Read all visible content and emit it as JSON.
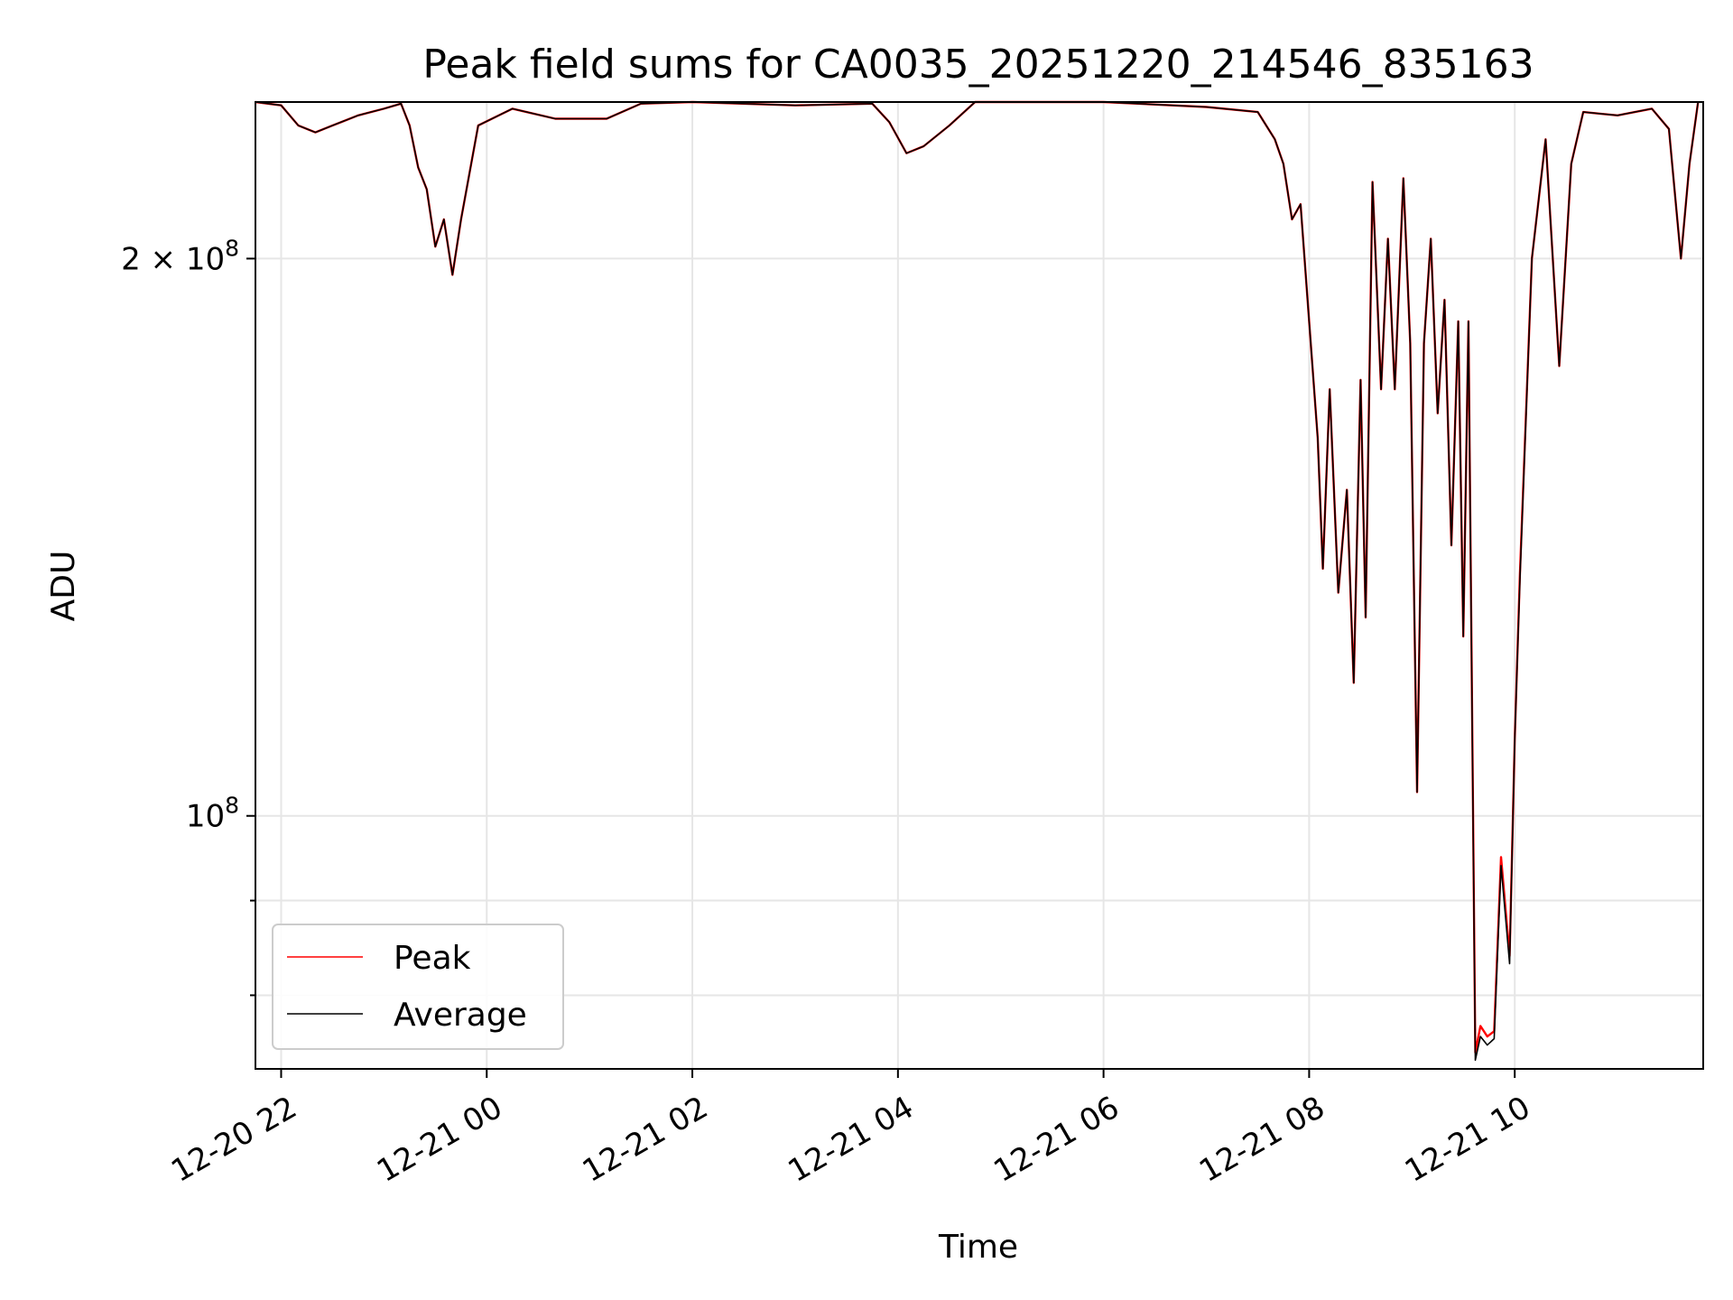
{
  "chart_data": {
    "type": "line",
    "title": "Peak field sums for CA0035_20251220_214546_835163",
    "xlabel": "Time",
    "ylabel": "ADU",
    "yscale": "log",
    "x_ticks": [
      "12-20 22",
      "12-21 00",
      "12-21 02",
      "12-21 04",
      "12-21 06",
      "12-21 08",
      "12-21 10"
    ],
    "y_ticks": [
      {
        "value": 200000000,
        "label": "2 × 10^8",
        "major": true
      },
      {
        "value": 100000000,
        "label": "10^8",
        "major": true
      },
      {
        "value": 90000000,
        "label": "",
        "major": false
      },
      {
        "value": 80000000,
        "label": "",
        "major": false
      }
    ],
    "xlim": [
      "2025-12-20 21:45",
      "2025-12-21 11:50"
    ],
    "ylim": [
      73000000,
      243000000
    ],
    "grid": true,
    "legend_position": "lower left",
    "series": [
      {
        "name": "Peak",
        "color": "#ff0000",
        "points": [
          [
            "2025-12-20 21:45",
            243000000
          ],
          [
            "2025-12-20 22:00",
            242000000
          ],
          [
            "2025-12-20 22:10",
            236000000
          ],
          [
            "2025-12-20 22:20",
            234000000
          ],
          [
            "2025-12-20 22:30",
            236000000
          ],
          [
            "2025-12-20 22:45",
            239000000
          ],
          [
            "2025-12-20 23:00",
            241000000
          ],
          [
            "2025-12-20 23:10",
            242500000
          ],
          [
            "2025-12-20 23:15",
            236000000
          ],
          [
            "2025-12-20 23:20",
            224000000
          ],
          [
            "2025-12-20 23:25",
            218000000
          ],
          [
            "2025-12-20 23:30",
            203000000
          ],
          [
            "2025-12-20 23:35",
            210000000
          ],
          [
            "2025-12-20 23:40",
            196000000
          ],
          [
            "2025-12-20 23:45",
            210000000
          ],
          [
            "2025-12-20 23:55",
            236000000
          ],
          [
            "2025-12-21 00:15",
            241000000
          ],
          [
            "2025-12-21 00:40",
            238000000
          ],
          [
            "2025-12-21 01:10",
            238000000
          ],
          [
            "2025-12-21 01:30",
            242500000
          ],
          [
            "2025-12-21 02:00",
            243000000
          ],
          [
            "2025-12-21 03:00",
            242000000
          ],
          [
            "2025-12-21 03:45",
            242500000
          ],
          [
            "2025-12-21 03:55",
            237000000
          ],
          [
            "2025-12-21 04:05",
            228000000
          ],
          [
            "2025-12-21 04:15",
            230000000
          ],
          [
            "2025-12-21 04:30",
            236000000
          ],
          [
            "2025-12-21 04:45",
            243000000
          ],
          [
            "2025-12-21 06:00",
            243000000
          ],
          [
            "2025-12-21 07:00",
            241500000
          ],
          [
            "2025-12-21 07:30",
            240000000
          ],
          [
            "2025-12-21 07:40",
            232000000
          ],
          [
            "2025-12-21 07:45",
            225000000
          ],
          [
            "2025-12-21 07:50",
            210000000
          ],
          [
            "2025-12-21 07:55",
            214000000
          ],
          [
            "2025-12-21 08:00",
            185000000
          ],
          [
            "2025-12-21 08:05",
            160000000
          ],
          [
            "2025-12-21 08:08",
            136000000
          ],
          [
            "2025-12-21 08:12",
            170000000
          ],
          [
            "2025-12-21 08:17",
            132000000
          ],
          [
            "2025-12-21 08:22",
            150000000
          ],
          [
            "2025-12-21 08:26",
            118000000
          ],
          [
            "2025-12-21 08:30",
            172000000
          ],
          [
            "2025-12-21 08:33",
            128000000
          ],
          [
            "2025-12-21 08:37",
            220000000
          ],
          [
            "2025-12-21 08:42",
            170000000
          ],
          [
            "2025-12-21 08:46",
            205000000
          ],
          [
            "2025-12-21 08:50",
            170000000
          ],
          [
            "2025-12-21 08:55",
            221000000
          ],
          [
            "2025-12-21 08:59",
            180000000
          ],
          [
            "2025-12-21 09:03",
            103000000
          ],
          [
            "2025-12-21 09:07",
            180000000
          ],
          [
            "2025-12-21 09:11",
            205000000
          ],
          [
            "2025-12-21 09:15",
            165000000
          ],
          [
            "2025-12-21 09:19",
            190000000
          ],
          [
            "2025-12-21 09:23",
            140000000
          ],
          [
            "2025-12-21 09:27",
            185000000
          ],
          [
            "2025-12-21 09:30",
            125000000
          ],
          [
            "2025-12-21 09:33",
            185000000
          ],
          [
            "2025-12-21 09:37",
            74500000
          ],
          [
            "2025-12-21 09:40",
            77000000
          ],
          [
            "2025-12-21 09:44",
            76000000
          ],
          [
            "2025-12-21 09:48",
            76500000
          ],
          [
            "2025-12-21 09:52",
            95000000
          ],
          [
            "2025-12-21 09:57",
            84000000
          ],
          [
            "2025-12-21 10:00",
            110000000
          ],
          [
            "2025-12-21 10:03",
            135000000
          ],
          [
            "2025-12-21 10:10",
            200000000
          ],
          [
            "2025-12-21 10:18",
            232000000
          ],
          [
            "2025-12-21 10:26",
            175000000
          ],
          [
            "2025-12-21 10:33",
            225000000
          ],
          [
            "2025-12-21 10:40",
            240000000
          ],
          [
            "2025-12-21 11:00",
            239000000
          ],
          [
            "2025-12-21 11:20",
            241000000
          ],
          [
            "2025-12-21 11:30",
            235000000
          ],
          [
            "2025-12-21 11:37",
            200000000
          ],
          [
            "2025-12-21 11:42",
            225000000
          ],
          [
            "2025-12-21 11:47",
            243000000
          ]
        ]
      },
      {
        "name": "Average",
        "color": "#000000",
        "points": [
          [
            "2025-12-20 21:45",
            243000000
          ],
          [
            "2025-12-20 22:00",
            242000000
          ],
          [
            "2025-12-20 22:10",
            236000000
          ],
          [
            "2025-12-20 22:20",
            234000000
          ],
          [
            "2025-12-20 22:30",
            236000000
          ],
          [
            "2025-12-20 22:45",
            239000000
          ],
          [
            "2025-12-20 23:00",
            241000000
          ],
          [
            "2025-12-20 23:10",
            242500000
          ],
          [
            "2025-12-20 23:15",
            236000000
          ],
          [
            "2025-12-20 23:20",
            224000000
          ],
          [
            "2025-12-20 23:25",
            218000000
          ],
          [
            "2025-12-20 23:30",
            203000000
          ],
          [
            "2025-12-20 23:35",
            210000000
          ],
          [
            "2025-12-20 23:40",
            196000000
          ],
          [
            "2025-12-20 23:45",
            210000000
          ],
          [
            "2025-12-20 23:55",
            236000000
          ],
          [
            "2025-12-21 00:15",
            241000000
          ],
          [
            "2025-12-21 00:40",
            238000000
          ],
          [
            "2025-12-21 01:10",
            238000000
          ],
          [
            "2025-12-21 01:30",
            242500000
          ],
          [
            "2025-12-21 02:00",
            243000000
          ],
          [
            "2025-12-21 03:00",
            242000000
          ],
          [
            "2025-12-21 03:45",
            242500000
          ],
          [
            "2025-12-21 03:55",
            237000000
          ],
          [
            "2025-12-21 04:05",
            228000000
          ],
          [
            "2025-12-21 04:15",
            230000000
          ],
          [
            "2025-12-21 04:30",
            236000000
          ],
          [
            "2025-12-21 04:45",
            243000000
          ],
          [
            "2025-12-21 06:00",
            243000000
          ],
          [
            "2025-12-21 07:00",
            241500000
          ],
          [
            "2025-12-21 07:30",
            240000000
          ],
          [
            "2025-12-21 07:40",
            232000000
          ],
          [
            "2025-12-21 07:45",
            225000000
          ],
          [
            "2025-12-21 07:50",
            210000000
          ],
          [
            "2025-12-21 07:55",
            214000000
          ],
          [
            "2025-12-21 08:00",
            185000000
          ],
          [
            "2025-12-21 08:05",
            160000000
          ],
          [
            "2025-12-21 08:08",
            136000000
          ],
          [
            "2025-12-21 08:12",
            170000000
          ],
          [
            "2025-12-21 08:17",
            132000000
          ],
          [
            "2025-12-21 08:22",
            150000000
          ],
          [
            "2025-12-21 08:26",
            118000000
          ],
          [
            "2025-12-21 08:30",
            172000000
          ],
          [
            "2025-12-21 08:33",
            128000000
          ],
          [
            "2025-12-21 08:37",
            220000000
          ],
          [
            "2025-12-21 08:42",
            170000000
          ],
          [
            "2025-12-21 08:46",
            205000000
          ],
          [
            "2025-12-21 08:50",
            170000000
          ],
          [
            "2025-12-21 08:55",
            221000000
          ],
          [
            "2025-12-21 08:59",
            180000000
          ],
          [
            "2025-12-21 09:03",
            103000000
          ],
          [
            "2025-12-21 09:07",
            180000000
          ],
          [
            "2025-12-21 09:11",
            205000000
          ],
          [
            "2025-12-21 09:15",
            165000000
          ],
          [
            "2025-12-21 09:19",
            190000000
          ],
          [
            "2025-12-21 09:23",
            140000000
          ],
          [
            "2025-12-21 09:27",
            185000000
          ],
          [
            "2025-12-21 09:30",
            125000000
          ],
          [
            "2025-12-21 09:33",
            185000000
          ],
          [
            "2025-12-21 09:37",
            73800000
          ],
          [
            "2025-12-21 09:40",
            76000000
          ],
          [
            "2025-12-21 09:44",
            75200000
          ],
          [
            "2025-12-21 09:48",
            75800000
          ],
          [
            "2025-12-21 09:52",
            94000000
          ],
          [
            "2025-12-21 09:57",
            83200000
          ],
          [
            "2025-12-21 10:00",
            110000000
          ],
          [
            "2025-12-21 10:03",
            134000000
          ],
          [
            "2025-12-21 10:10",
            200000000
          ],
          [
            "2025-12-21 10:18",
            232000000
          ],
          [
            "2025-12-21 10:26",
            175000000
          ],
          [
            "2025-12-21 10:33",
            225000000
          ],
          [
            "2025-12-21 10:40",
            240000000
          ],
          [
            "2025-12-21 11:00",
            239000000
          ],
          [
            "2025-12-21 11:20",
            241000000
          ],
          [
            "2025-12-21 11:30",
            235000000
          ],
          [
            "2025-12-21 11:37",
            200000000
          ],
          [
            "2025-12-21 11:42",
            225000000
          ],
          [
            "2025-12-21 11:47",
            243000000
          ]
        ]
      }
    ]
  }
}
